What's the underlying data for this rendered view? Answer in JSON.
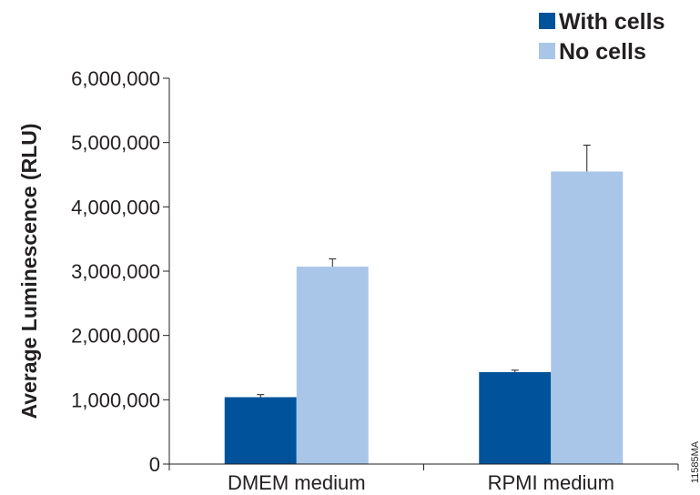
{
  "chart_data": {
    "type": "bar",
    "categories": [
      "DMEM medium",
      "RPMI medium"
    ],
    "series": [
      {
        "name": "With cells",
        "values": [
          1040000,
          1430000
        ],
        "errors": [
          40000,
          30000
        ],
        "color": "#00539b"
      },
      {
        "name": "No cells",
        "values": [
          3070000,
          4550000
        ],
        "errors": [
          120000,
          410000
        ],
        "color": "#a9c6e8"
      }
    ],
    "ylabel": "Average Luminescence (RLU)",
    "xlabel": "",
    "ylim": [
      0,
      6000000
    ],
    "yticks": [
      0,
      1000000,
      2000000,
      3000000,
      4000000,
      5000000,
      6000000
    ],
    "ytick_labels": [
      "0",
      "1,000,000",
      "2,000,000",
      "3,000,000",
      "4,000,000",
      "5,000,000",
      "6,000,000"
    ],
    "legend_position": "top-right",
    "grid": false
  },
  "figure_id": "11585MA"
}
